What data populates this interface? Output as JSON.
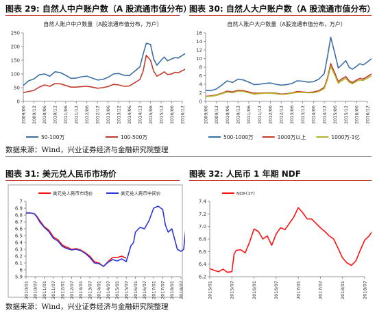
{
  "figures": [
    {
      "label": "图表 29:",
      "title": "自然人中户账户数（A 股流通市值分布）"
    },
    {
      "label": "图表 30:",
      "title": "自然人大户账户数（A 股流通市值分布）"
    },
    {
      "label": "图表 31:",
      "title": "美元兑人民币市场价"
    },
    {
      "label": "图表 32:",
      "title": "人民币 1 年期 NDF"
    }
  ],
  "source_note": "数据来源：Wind，兴业证券经济与金融研究院整理",
  "colors": {
    "rule": "#c0392b",
    "blue": "#3a6ea5",
    "red": "#c0392b",
    "olive": "#b5b52a",
    "bright_red": "#ff1010",
    "bright_blue": "#2c35d8"
  },
  "chart_data": [
    {
      "type": "line",
      "title": "自然人账户中户数量（A股流通市值分布，万户）",
      "x_ticks": [
        "2009/06",
        "2009/12",
        "2010/06",
        "2010/12",
        "2011/06",
        "2011/12",
        "2012/06",
        "2012/12",
        "2013/06",
        "2013/12",
        "2014/06",
        "2014/12",
        "2015/06",
        "2015/12",
        "2016/06",
        "2016/12"
      ],
      "ylim": [
        0,
        250
      ],
      "y_ticks": [
        "0",
        "50",
        "100",
        "150",
        "200",
        "250"
      ],
      "grid": false,
      "legend_position": "bottom",
      "series": [
        {
          "name": "50-100万",
          "color": "#3a6ea5",
          "x": [
            0,
            0.5,
            1,
            1.5,
            2,
            2.5,
            3,
            3.5,
            4,
            4.5,
            5,
            5.5,
            6,
            6.5,
            7,
            7.5,
            8,
            8.5,
            9,
            9.5,
            10,
            10.5,
            11,
            11.3,
            11.6,
            12,
            12.3,
            12.6,
            13,
            13.3,
            13.6,
            14,
            14.3,
            14.6,
            15,
            15.3,
            15.6
          ],
          "values": [
            58,
            75,
            82,
            97,
            100,
            92,
            108,
            105,
            95,
            84,
            85,
            90,
            92,
            85,
            78,
            80,
            88,
            100,
            102,
            95,
            94,
            110,
            126,
            172,
            212,
            208,
            155,
            132,
            150,
            162,
            148,
            155,
            160,
            158,
            168,
            175,
            180
          ]
        },
        {
          "name": "100-500万",
          "color": "#c0392b",
          "x": [
            0,
            0.5,
            1,
            1.5,
            2,
            2.5,
            3,
            3.5,
            4,
            4.5,
            5,
            5.5,
            6,
            6.5,
            7,
            7.5,
            8,
            8.5,
            9,
            9.5,
            10,
            10.5,
            11,
            11.3,
            11.6,
            12,
            12.3,
            12.6,
            13,
            13.3,
            13.6,
            14,
            14.3,
            14.6,
            15,
            15.3,
            15.6
          ],
          "values": [
            32,
            36,
            40,
            52,
            60,
            55,
            65,
            64,
            58,
            52,
            52,
            54,
            55,
            52,
            48,
            50,
            54,
            62,
            60,
            55,
            56,
            68,
            80,
            110,
            168,
            150,
            110,
            92,
            100,
            108,
            98,
            100,
            106,
            104,
            112,
            118,
            122
          ]
        }
      ]
    },
    {
      "type": "line",
      "title": "自然人账户大户数量（A股流通市值分布，万户）",
      "x_ticks": [
        "2009/06",
        "2009/12",
        "2010/06",
        "2010/12",
        "2011/06",
        "2011/12",
        "2012/06",
        "2012/12",
        "2013/06",
        "2013/12",
        "2014/06",
        "2014/12",
        "2015/06",
        "2015/12",
        "2016/06",
        "2016/12"
      ],
      "ylim": [
        0,
        16
      ],
      "y_ticks": [
        "0",
        "2",
        "4",
        "6",
        "8",
        "10",
        "12",
        "14",
        "16"
      ],
      "grid": false,
      "legend_position": "bottom",
      "series": [
        {
          "name": "500-1000万",
          "color": "#3a6ea5",
          "x": [
            0,
            0.5,
            1,
            1.5,
            2,
            2.5,
            3,
            3.5,
            4,
            4.5,
            5,
            5.5,
            6,
            6.5,
            7,
            7.5,
            8,
            8.5,
            9,
            9.5,
            10,
            10.5,
            11,
            11.3,
            11.6,
            12,
            12.3,
            12.6,
            13,
            13.3,
            13.6,
            14,
            14.3,
            14.6,
            15,
            15.3,
            15.6
          ],
          "values": [
            2.6,
            2.5,
            2.9,
            3.8,
            4.8,
            4.4,
            5.2,
            5.0,
            4.5,
            3.9,
            4.0,
            4.2,
            4.3,
            4.0,
            3.8,
            3.9,
            4.2,
            4.8,
            4.7,
            4.5,
            4.6,
            5.2,
            6.5,
            10.5,
            15.0,
            11.0,
            7.8,
            8.5,
            9.5,
            8.0,
            7.5,
            8.2,
            8.8,
            8.5,
            9.2,
            9.8,
            10.2
          ]
        },
        {
          "name": "1000万以上",
          "color": "#c0392b",
          "x": [
            0,
            0.5,
            1,
            1.5,
            2,
            2.5,
            3,
            3.5,
            4,
            4.5,
            5,
            5.5,
            6,
            6.5,
            7,
            7.5,
            8,
            8.5,
            9,
            9.5,
            10,
            10.5,
            11,
            11.3,
            11.6,
            12,
            12.3,
            12.6,
            13,
            13.3,
            13.6,
            14,
            14.3,
            14.6,
            15,
            15.3,
            15.6
          ],
          "values": [
            1.2,
            1.3,
            1.5,
            1.9,
            2.4,
            2.2,
            2.6,
            2.5,
            2.2,
            1.9,
            1.9,
            2.0,
            2.0,
            1.9,
            1.7,
            1.8,
            2.0,
            2.3,
            2.2,
            2.1,
            2.2,
            2.5,
            3.3,
            5.5,
            8.8,
            6.5,
            4.6,
            5.2,
            5.8,
            4.8,
            4.4,
            5.0,
            5.4,
            5.2,
            5.8,
            6.3,
            6.6
          ]
        },
        {
          "name": "1000万-1亿",
          "color": "#b5b52a",
          "x": [
            0,
            0.5,
            1,
            1.5,
            2,
            2.5,
            3,
            3.5,
            4,
            4.5,
            5,
            5.5,
            6,
            6.5,
            7,
            7.5,
            8,
            8.5,
            9,
            9.5,
            10,
            10.5,
            11,
            11.3,
            11.6,
            12,
            12.3,
            12.6,
            13,
            13.3,
            13.6,
            14,
            14.3,
            14.6,
            15,
            15.3,
            15.6
          ],
          "values": [
            1.1,
            1.2,
            1.4,
            1.8,
            2.2,
            2.0,
            2.4,
            2.3,
            2.0,
            1.7,
            1.8,
            1.9,
            1.9,
            1.8,
            1.6,
            1.7,
            1.9,
            2.1,
            2.1,
            2.0,
            2.0,
            2.3,
            3.0,
            5.1,
            8.2,
            6.0,
            4.2,
            4.8,
            5.4,
            4.5,
            4.1,
            4.7,
            5.0,
            4.9,
            5.4,
            5.9,
            6.2
          ]
        }
      ]
    },
    {
      "type": "line",
      "title": "",
      "x_ticks": [
        "2010/01",
        "2010/07",
        "2011/01",
        "2011/07",
        "2012/01",
        "2012/07",
        "2013/01",
        "2013/07",
        "2014/01",
        "2014/07",
        "2015/01",
        "2015/07",
        "2016/01",
        "2016/07",
        "2017/01",
        "2017/07",
        "2018/01",
        "2018/07"
      ],
      "ylim": [
        5.9,
        7.0
      ],
      "y_ticks": [
        "5.9",
        "6",
        "6.1",
        "6.2",
        "6.3",
        "6.4",
        "6.5",
        "6.6",
        "6.7",
        "6.8",
        "6.9",
        "7"
      ],
      "grid": false,
      "legend_position": "top",
      "series": [
        {
          "name": "美元兑人民币市场价",
          "color": "#ff1010",
          "x": [
            0,
            0.5,
            0.9,
            1.2,
            1.5,
            2,
            2.5,
            3,
            3.5,
            4,
            4.5,
            5,
            5.5,
            6,
            6.5,
            7,
            7.5,
            8,
            8.5,
            9,
            9.5,
            10,
            10.5,
            11
          ],
          "values": [
            6.83,
            6.83,
            6.82,
            6.78,
            6.72,
            6.63,
            6.58,
            6.48,
            6.44,
            6.36,
            6.33,
            6.3,
            6.31,
            6.29,
            6.25,
            6.2,
            6.12,
            6.1,
            6.05,
            6.12,
            6.18,
            6.18,
            6.2,
            6.17
          ]
        },
        {
          "name": "美元兑人民币中间价",
          "color": "#2c35d8",
          "x": [
            0,
            0.5,
            0.9,
            1.2,
            1.5,
            2,
            2.5,
            3,
            3.5,
            4,
            4.5,
            5,
            5.5,
            6,
            6.5,
            7,
            7.5,
            8,
            8.5,
            9,
            9.5,
            10,
            10.5,
            11,
            11.5,
            11.8,
            12,
            12.5,
            13,
            13.5,
            14,
            14.5,
            15,
            15.3,
            15.6,
            16,
            16.3,
            16.6,
            17,
            17.3,
            17.6,
            17.9
          ],
          "values": [
            6.83,
            6.83,
            6.82,
            6.77,
            6.7,
            6.62,
            6.56,
            6.46,
            6.42,
            6.34,
            6.31,
            6.29,
            6.3,
            6.28,
            6.24,
            6.18,
            6.1,
            6.09,
            6.05,
            6.11,
            6.15,
            6.13,
            6.16,
            6.12,
            6.35,
            6.4,
            6.55,
            6.62,
            6.6,
            6.72,
            6.9,
            6.93,
            6.88,
            6.65,
            6.55,
            6.6,
            6.45,
            6.3,
            6.27,
            6.3,
            6.7,
            6.94
          ]
        }
      ]
    },
    {
      "type": "line",
      "title": "",
      "x_ticks": [
        "2015/01",
        "2015/07",
        "2016/01",
        "2016/07",
        "2017/01",
        "2017/07",
        "2018/01",
        "2018/07"
      ],
      "ylim": [
        6.2,
        7.4
      ],
      "y_ticks": [
        "6.2",
        "6.4",
        "6.6",
        "6.8",
        "7.0",
        "7.2",
        "7.4"
      ],
      "grid": false,
      "legend_position": "top",
      "series": [
        {
          "name": "NDF(1Y)",
          "color": "#ff1010",
          "x": [
            0,
            0.2,
            0.4,
            0.6,
            0.8,
            1,
            1.1,
            1.2,
            1.4,
            1.6,
            1.8,
            2,
            2.2,
            2.4,
            2.6,
            2.8,
            3,
            3.2,
            3.4,
            3.6,
            3.8,
            4,
            4.2,
            4.4,
            4.6,
            4.8,
            5,
            5.2,
            5.4,
            5.6,
            5.8,
            6,
            6.2,
            6.4,
            6.6,
            6.8,
            7,
            7.2,
            7.4,
            7.6,
            7.8
          ],
          "values": [
            6.33,
            6.3,
            6.28,
            6.32,
            6.27,
            6.28,
            6.56,
            6.62,
            6.63,
            6.58,
            6.75,
            6.96,
            6.92,
            6.8,
            6.85,
            6.7,
            6.88,
            6.98,
            6.95,
            7.05,
            7.15,
            7.3,
            7.22,
            7.12,
            7.12,
            7.05,
            6.98,
            6.92,
            6.85,
            6.8,
            6.65,
            6.5,
            6.42,
            6.38,
            6.45,
            6.62,
            6.78,
            6.85,
            6.95,
            7.02,
            7.05
          ]
        }
      ]
    }
  ]
}
